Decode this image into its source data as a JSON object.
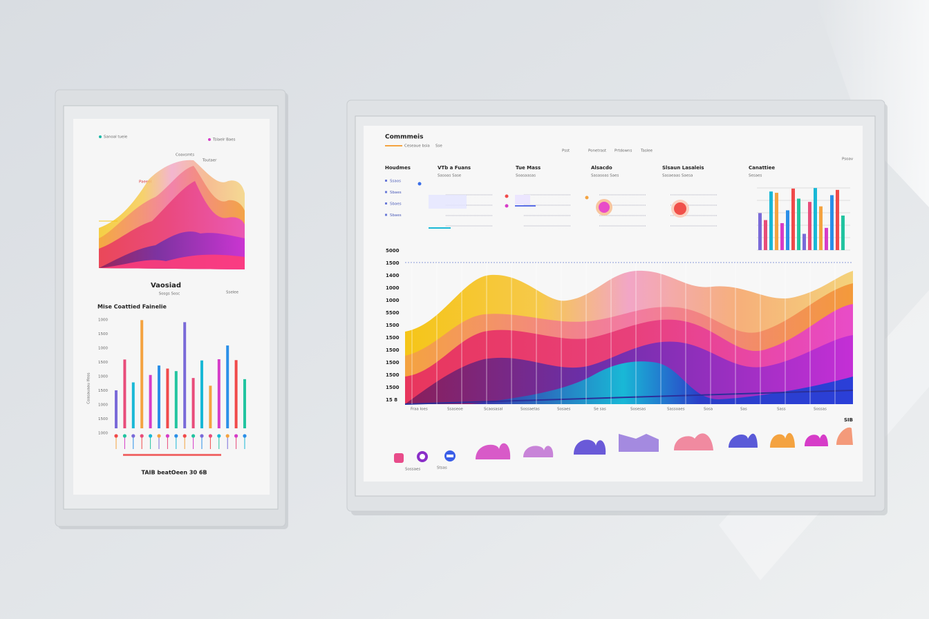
{
  "left_panel": {
    "legend": [
      "Sanoal tueie",
      "Tslaelr Baes"
    ],
    "peak_labels": [
      "Coaxsmts",
      "Toutaer"
    ],
    "side_label": "Paeeel",
    "title": "Vaosiad",
    "caption": "Sosgs Sosc",
    "caption_right": "Sselee",
    "subtitle": "Mise Coattied Fainelie",
    "axis_title": "Coasauaau lfeos",
    "y_labels": [
      "1000",
      "1500",
      "1000",
      "1500",
      "1000",
      "1500",
      "1000",
      "1500",
      "1000"
    ],
    "footer": "TAIB beatOeen 30 6B"
  },
  "right_panel": {
    "header": "Commmeis",
    "subheader": [
      "Ceseaue bsia",
      "Sse"
    ],
    "nav": [
      "Psst",
      "Ponetrast",
      "Prtdowns",
      "Taslee"
    ],
    "corner": "Psoav",
    "sections": [
      {
        "title": "Houdmes",
        "items": [
          "Ssaos",
          "Sbaes",
          "Sbaes",
          "Sbaes"
        ]
      },
      {
        "title": "VTb a Fuans",
        "subtitle": "Sasoas Sase"
      },
      {
        "title": "Tue Mass",
        "subtitle": "Soasaasas"
      },
      {
        "title": "Alsacdo",
        "subtitle": "Sasasoas Saes"
      },
      {
        "title": "Slsaun Lasaleis",
        "subtitle": "Sasaeaas Saesa"
      },
      {
        "title": "Canattiee",
        "subtitle": "Sesaes"
      }
    ],
    "y_labels": [
      "5000",
      "1500",
      "1400",
      "1000",
      "1000",
      "5500",
      "1500",
      "1500",
      "1500",
      "1500",
      "1500",
      "1500",
      "15 8"
    ],
    "x_labels": [
      "Fraa Ioes",
      "Ssaseoe",
      "Scaosasal",
      "Sossaetas",
      "Sosaes",
      "Se sas",
      "Sosesas",
      "Sassoaes",
      "Sosa",
      "Sas",
      "Sass",
      "Sossas"
    ],
    "badge": "SIB",
    "icon_labels": [
      "Sossaes",
      "Stsas"
    ]
  }
}
